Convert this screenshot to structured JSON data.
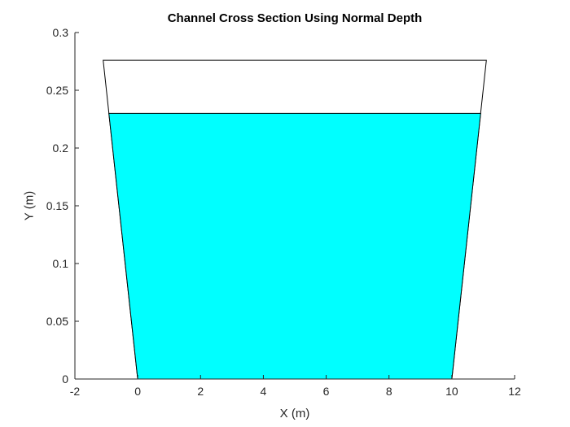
{
  "chart_data": {
    "type": "area",
    "title": "Channel Cross Section Using Normal Depth",
    "xlabel": "X (m)",
    "ylabel": "Y (m)",
    "xlim": [
      -2,
      12
    ],
    "ylim": [
      0,
      0.3
    ],
    "xticks": [
      -2,
      0,
      2,
      4,
      6,
      8,
      10,
      12
    ],
    "yticks": [
      0,
      0.05,
      0.1,
      0.15,
      0.2,
      0.25,
      0.3
    ],
    "xtick_labels": [
      "-2",
      "0",
      "2",
      "4",
      "6",
      "8",
      "10",
      "12"
    ],
    "ytick_labels": [
      "0",
      "0.05",
      "0.1",
      "0.15",
      "0.2",
      "0.25",
      "0.3"
    ],
    "grid": false,
    "series": [
      {
        "kind": "channel-outline",
        "x": [
          -1.1,
          0,
          10,
          11.1,
          -1.1
        ],
        "y": [
          0.276,
          0,
          0,
          0.276,
          0.276
        ],
        "fill": "#ffffff",
        "stroke": "#000000"
      },
      {
        "kind": "water-area",
        "x": [
          -0.92,
          0,
          10,
          10.92
        ],
        "y": [
          0.23,
          0,
          0,
          0.23
        ],
        "fill": "#00ffff",
        "stroke": "#000000"
      }
    ]
  }
}
